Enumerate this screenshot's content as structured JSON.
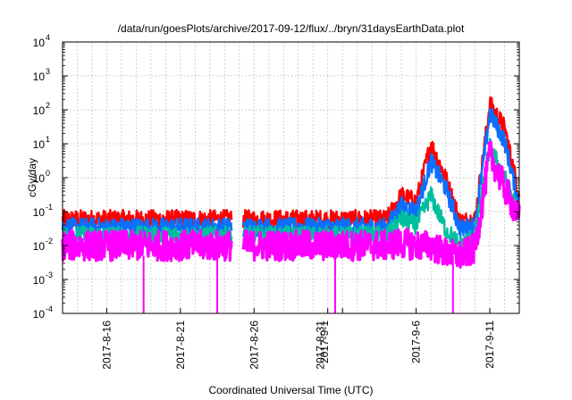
{
  "chart_data": {
    "type": "line",
    "title": "/data/run/goesPlots/archive/2017-09-12/flux/../bryn/31daysEarthData.plot",
    "xlabel": "Coordinated Universal Time (UTC)",
    "ylabel": "cGy/day",
    "yscale": "log",
    "ylim": [
      0.0001,
      10000
    ],
    "xlim": [
      "2017-08-13",
      "2017-09-13"
    ],
    "y_ticks": [
      {
        "value": 0.0001,
        "mantissa": "10",
        "exp": "-4"
      },
      {
        "value": 0.001,
        "mantissa": "10",
        "exp": "-3"
      },
      {
        "value": 0.01,
        "mantissa": "10",
        "exp": "-2"
      },
      {
        "value": 0.1,
        "mantissa": "10",
        "exp": "-1"
      },
      {
        "value": 1,
        "mantissa": "10",
        "exp": "0"
      },
      {
        "value": 10,
        "mantissa": "10",
        "exp": "1"
      },
      {
        "value": 100,
        "mantissa": "10",
        "exp": "2"
      },
      {
        "value": 1000,
        "mantissa": "10",
        "exp": "3"
      },
      {
        "value": 10000,
        "mantissa": "10",
        "exp": "4"
      }
    ],
    "x_ticks": [
      "2017-8-16",
      "2017-8-21",
      "2017-8-26",
      "2017-8-31",
      "2017-9-1",
      "2017-9-6",
      "2017-9-11"
    ],
    "grid": true,
    "data_gaps": [
      [
        "2017-08-24",
        "2017-08-25"
      ]
    ],
    "series": [
      {
        "color": "#ff0000",
        "x": [
          "2017-08-13",
          "2017-08-24",
          "2017-08-25",
          "2017-09-04",
          "2017-09-05",
          "2017-09-06",
          "2017-09-07",
          "2017-09-08",
          "2017-09-09",
          "2017-09-10",
          "2017-09-11",
          "2017-09-12",
          "2017-09-13"
        ],
        "y": [
          0.06,
          0.06,
          0.06,
          0.06,
          0.3,
          0.2,
          10,
          1,
          0.05,
          0.06,
          150,
          30,
          0.3
        ]
      },
      {
        "color": "#0a6eff",
        "x": [
          "2017-08-13",
          "2017-08-24",
          "2017-08-25",
          "2017-09-04",
          "2017-09-05",
          "2017-09-06",
          "2017-09-07",
          "2017-09-08",
          "2017-09-09",
          "2017-09-10",
          "2017-09-11",
          "2017-09-12",
          "2017-09-13"
        ],
        "y": [
          0.035,
          0.035,
          0.035,
          0.035,
          0.15,
          0.1,
          3,
          0.5,
          0.03,
          0.04,
          80,
          12,
          0.15
        ]
      },
      {
        "color": "#00bf9f",
        "x": [
          "2017-08-13",
          "2017-08-24",
          "2017-08-25",
          "2017-09-04",
          "2017-09-05",
          "2017-09-06",
          "2017-09-07",
          "2017-09-08",
          "2017-09-09",
          "2017-09-10",
          "2017-09-11",
          "2017-09-12",
          "2017-09-13"
        ],
        "y": [
          0.02,
          0.02,
          0.02,
          0.02,
          0.06,
          0.04,
          0.3,
          0.03,
          0.01,
          0.02,
          8,
          1,
          0.08
        ]
      },
      {
        "color": "#ff00ff",
        "x": [
          "2017-08-13",
          "2017-08-24",
          "2017-08-25",
          "2017-09-04",
          "2017-09-05",
          "2017-09-06",
          "2017-09-07",
          "2017-09-08",
          "2017-09-09",
          "2017-09-10",
          "2017-09-11",
          "2017-09-12",
          "2017-09-13"
        ],
        "y": [
          0.01,
          0.01,
          0.01,
          0.01,
          0.012,
          0.01,
          0.01,
          0.006,
          0.005,
          0.008,
          5,
          0.5,
          0.06
        ]
      }
    ],
    "dropouts": [
      {
        "series": 3,
        "x": "2017-08-18"
      },
      {
        "series": 3,
        "x": "2017-08-23"
      },
      {
        "series": 3,
        "x": "2017-08-31"
      },
      {
        "series": 3,
        "x": "2017-09-08"
      }
    ]
  }
}
